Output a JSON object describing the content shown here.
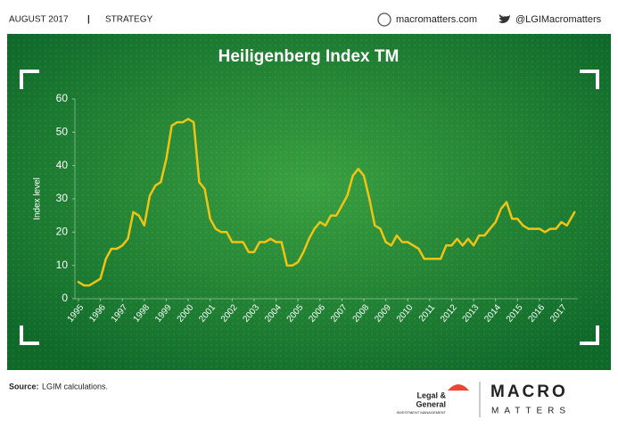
{
  "header": {
    "date": "AUGUST 2017",
    "separator": "|",
    "section": "STRATEGY",
    "website": "macromatters.com",
    "twitter": "@LGIMacromatters"
  },
  "chart_data": {
    "type": "line",
    "title": "Heiligenberg Index TM",
    "y_label": "Index level",
    "color": "#f2c313",
    "x": [
      1995.0,
      1995.25,
      1995.5,
      1995.75,
      1996.0,
      1996.25,
      1996.5,
      1996.75,
      1997.0,
      1997.25,
      1997.5,
      1997.75,
      1998.0,
      1998.25,
      1998.5,
      1998.75,
      1999.0,
      1999.25,
      1999.5,
      1999.75,
      2000.0,
      2000.25,
      2000.5,
      2000.75,
      2001.0,
      2001.25,
      2001.5,
      2001.75,
      2002.0,
      2002.25,
      2002.5,
      2002.75,
      2003.0,
      2003.25,
      2003.5,
      2003.75,
      2004.0,
      2004.25,
      2004.5,
      2004.75,
      2005.0,
      2005.25,
      2005.5,
      2005.75,
      2006.0,
      2006.25,
      2006.5,
      2006.75,
      2007.0,
      2007.25,
      2007.5,
      2007.75,
      2008.0,
      2008.25,
      2008.5,
      2008.75,
      2009.0,
      2009.25,
      2009.5,
      2009.75,
      2010.0,
      2010.25,
      2010.5,
      2010.75,
      2011.0,
      2011.25,
      2011.5,
      2011.75,
      2012.0,
      2012.25,
      2012.5,
      2012.75,
      2013.0,
      2013.25,
      2013.5,
      2013.75,
      2014.0,
      2014.25,
      2014.5,
      2014.75,
      2015.0,
      2015.25,
      2015.5,
      2015.75,
      2016.0,
      2016.25,
      2016.5,
      2016.75,
      2017.0,
      2017.25,
      2017.6
    ],
    "values": [
      5,
      4,
      4,
      5,
      6,
      12,
      15,
      15,
      16,
      18,
      26,
      25,
      22,
      31,
      34,
      35,
      42,
      52,
      53,
      53,
      54,
      53,
      35,
      33,
      24,
      21,
      20,
      20,
      17,
      17,
      17,
      14,
      14,
      17,
      17,
      18,
      17,
      17,
      10,
      10,
      11,
      14,
      18,
      21,
      23,
      22,
      25,
      25,
      28,
      31,
      37,
      39,
      37,
      30,
      22,
      21,
      17,
      16,
      19,
      17,
      17,
      16,
      15,
      12,
      12,
      12,
      12,
      16,
      16,
      18,
      16,
      18,
      16,
      19,
      19,
      21,
      23,
      27,
      29,
      24,
      24,
      22,
      21,
      21,
      21,
      20,
      21,
      21,
      23,
      22,
      26
    ],
    "xlim": [
      1995,
      2017.75
    ],
    "xticks": [
      1995,
      1996,
      1997,
      1998,
      1999,
      2000,
      2001,
      2002,
      2003,
      2004,
      2005,
      2006,
      2007,
      2008,
      2009,
      2010,
      2011,
      2012,
      2013,
      2014,
      2015,
      2016,
      2017
    ],
    "ylim": [
      0,
      60
    ],
    "yticks": [
      0,
      10,
      20,
      30,
      40,
      50,
      60
    ],
    "grid": false
  },
  "footer": {
    "source_label": "Source:",
    "source_text": "LGIM calculations.",
    "lg_line1": "Legal &",
    "lg_line2": "General",
    "lg_sub": "INVESTMENT MANAGEMENT",
    "macro": "MACRO",
    "matters": "MATTERS"
  }
}
